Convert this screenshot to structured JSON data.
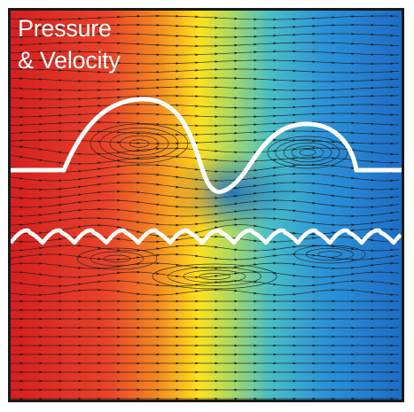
{
  "figure": {
    "title_line1": "Pressure",
    "title_line2": "& Velocity",
    "colormap": [
      "#d7191c",
      "#f15a24",
      "#f9a11b",
      "#ffe61a",
      "#b4e05a",
      "#3fc0c8",
      "#2b8fd6",
      "#1f6fc4"
    ],
    "frame_color": "#1a1a1a",
    "wall_color": "#ffffff",
    "streamline_color": "#1a1a1a"
  }
}
